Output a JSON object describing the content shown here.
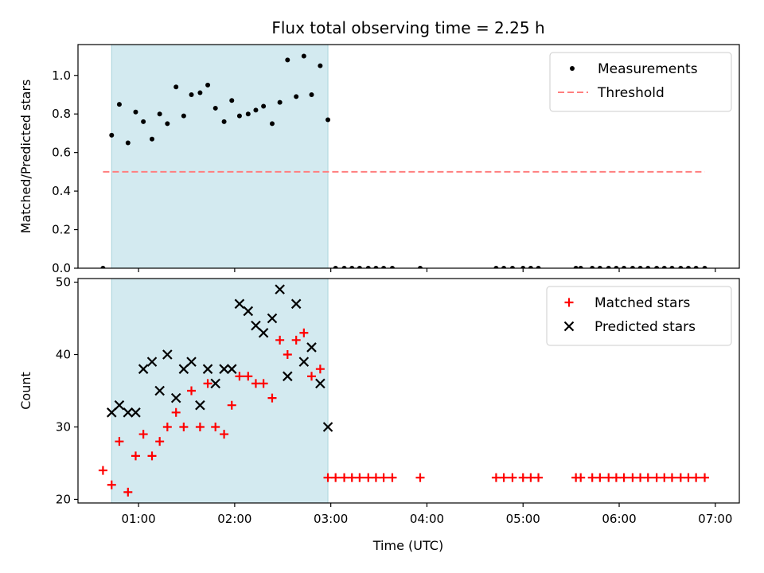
{
  "chart_data": {
    "title": "Flux total observing time = 2.25 h",
    "xlabel": "Time (UTC)",
    "x_ticks": [
      "01:00",
      "02:00",
      "03:00",
      "04:00",
      "05:00",
      "06:00",
      "07:00"
    ],
    "xlim_hours": [
      0.37,
      7.25
    ],
    "shaded_interval_hours": [
      0.72,
      2.97
    ],
    "shade_color": "#d3eaf0",
    "panels": [
      {
        "type": "scatter",
        "ylabel": "Matched/Predicted stars",
        "ylim": [
          0,
          1.16
        ],
        "y_ticks": [
          0.0,
          0.2,
          0.4,
          0.6,
          0.8,
          1.0
        ],
        "legend_position": "top-right",
        "series": [
          {
            "name": "Measurements",
            "marker": "dot",
            "color": "#000000",
            "points": [
              [
                0.63,
                0.0
              ],
              [
                0.72,
                0.69
              ],
              [
                0.8,
                0.85
              ],
              [
                0.89,
                0.65
              ],
              [
                0.97,
                0.81
              ],
              [
                1.05,
                0.76
              ],
              [
                1.14,
                0.67
              ],
              [
                1.22,
                0.8
              ],
              [
                1.3,
                0.75
              ],
              [
                1.39,
                0.94
              ],
              [
                1.47,
                0.79
              ],
              [
                1.55,
                0.9
              ],
              [
                1.64,
                0.91
              ],
              [
                1.72,
                0.95
              ],
              [
                1.8,
                0.83
              ],
              [
                1.89,
                0.76
              ],
              [
                1.97,
                0.87
              ],
              [
                2.05,
                0.79
              ],
              [
                2.14,
                0.8
              ],
              [
                2.22,
                0.82
              ],
              [
                2.3,
                0.84
              ],
              [
                2.39,
                0.75
              ],
              [
                2.47,
                0.86
              ],
              [
                2.55,
                1.08
              ],
              [
                2.64,
                0.89
              ],
              [
                2.72,
                1.1
              ],
              [
                2.8,
                0.9
              ],
              [
                2.89,
                1.05
              ],
              [
                2.97,
                0.77
              ],
              [
                3.05,
                0.0
              ],
              [
                3.14,
                0.0
              ],
              [
                3.22,
                0.0
              ],
              [
                3.3,
                0.0
              ],
              [
                3.39,
                0.0
              ],
              [
                3.47,
                0.0
              ],
              [
                3.55,
                0.0
              ],
              [
                3.64,
                0.0
              ],
              [
                3.93,
                0.0
              ],
              [
                4.72,
                0.0
              ],
              [
                4.8,
                0.0
              ],
              [
                4.89,
                0.0
              ],
              [
                5.0,
                0.0
              ],
              [
                5.08,
                0.0
              ],
              [
                5.16,
                0.0
              ],
              [
                5.55,
                0.0
              ],
              [
                5.6,
                0.0
              ],
              [
                5.72,
                0.0
              ],
              [
                5.8,
                0.0
              ],
              [
                5.89,
                0.0
              ],
              [
                5.97,
                0.0
              ],
              [
                6.05,
                0.0
              ],
              [
                6.14,
                0.0
              ],
              [
                6.22,
                0.0
              ],
              [
                6.3,
                0.0
              ],
              [
                6.39,
                0.0
              ],
              [
                6.47,
                0.0
              ],
              [
                6.55,
                0.0
              ],
              [
                6.64,
                0.0
              ],
              [
                6.72,
                0.0
              ],
              [
                6.8,
                0.0
              ],
              [
                6.89,
                0.0
              ]
            ]
          },
          {
            "name": "Threshold",
            "type": "line",
            "style": "dashed",
            "color": "#ff7f7f",
            "points": [
              [
                0.63,
                0.5
              ],
              [
                6.89,
                0.5
              ]
            ]
          }
        ]
      },
      {
        "type": "scatter",
        "ylabel": "Count",
        "ylim": [
          19.5,
          50.5
        ],
        "y_ticks": [
          20,
          30,
          40,
          50
        ],
        "legend_position": "top-right",
        "series": [
          {
            "name": "Matched stars",
            "marker": "plus",
            "color": "#ff0000",
            "points": [
              [
                0.63,
                24
              ],
              [
                0.72,
                22
              ],
              [
                0.8,
                28
              ],
              [
                0.89,
                21
              ],
              [
                0.97,
                26
              ],
              [
                1.05,
                29
              ],
              [
                1.14,
                26
              ],
              [
                1.22,
                28
              ],
              [
                1.3,
                30
              ],
              [
                1.39,
                32
              ],
              [
                1.47,
                30
              ],
              [
                1.55,
                35
              ],
              [
                1.64,
                30
              ],
              [
                1.72,
                36
              ],
              [
                1.8,
                30
              ],
              [
                1.89,
                29
              ],
              [
                1.97,
                33
              ],
              [
                2.05,
                37
              ],
              [
                2.14,
                37
              ],
              [
                2.22,
                36
              ],
              [
                2.3,
                36
              ],
              [
                2.39,
                34
              ],
              [
                2.47,
                42
              ],
              [
                2.55,
                40
              ],
              [
                2.64,
                42
              ],
              [
                2.72,
                43
              ],
              [
                2.8,
                37
              ],
              [
                2.89,
                38
              ],
              [
                2.97,
                23
              ],
              [
                3.05,
                23
              ],
              [
                3.14,
                23
              ],
              [
                3.22,
                23
              ],
              [
                3.3,
                23
              ],
              [
                3.39,
                23
              ],
              [
                3.47,
                23
              ],
              [
                3.55,
                23
              ],
              [
                3.64,
                23
              ],
              [
                3.93,
                23
              ],
              [
                4.72,
                23
              ],
              [
                4.8,
                23
              ],
              [
                4.89,
                23
              ],
              [
                5.0,
                23
              ],
              [
                5.08,
                23
              ],
              [
                5.16,
                23
              ],
              [
                5.55,
                23
              ],
              [
                5.6,
                23
              ],
              [
                5.72,
                23
              ],
              [
                5.8,
                23
              ],
              [
                5.89,
                23
              ],
              [
                5.97,
                23
              ],
              [
                6.05,
                23
              ],
              [
                6.14,
                23
              ],
              [
                6.22,
                23
              ],
              [
                6.3,
                23
              ],
              [
                6.39,
                23
              ],
              [
                6.47,
                23
              ],
              [
                6.55,
                23
              ],
              [
                6.64,
                23
              ],
              [
                6.72,
                23
              ],
              [
                6.8,
                23
              ],
              [
                6.89,
                23
              ]
            ]
          },
          {
            "name": "Predicted stars",
            "marker": "x",
            "color": "#000000",
            "points": [
              [
                0.72,
                32
              ],
              [
                0.8,
                33
              ],
              [
                0.89,
                32
              ],
              [
                0.97,
                32
              ],
              [
                1.05,
                38
              ],
              [
                1.14,
                39
              ],
              [
                1.22,
                35
              ],
              [
                1.3,
                40
              ],
              [
                1.39,
                34
              ],
              [
                1.47,
                38
              ],
              [
                1.55,
                39
              ],
              [
                1.64,
                33
              ],
              [
                1.72,
                38
              ],
              [
                1.8,
                36
              ],
              [
                1.89,
                38
              ],
              [
                1.97,
                38
              ],
              [
                2.05,
                47
              ],
              [
                2.14,
                46
              ],
              [
                2.22,
                44
              ],
              [
                2.3,
                43
              ],
              [
                2.39,
                45
              ],
              [
                2.47,
                49
              ],
              [
                2.55,
                37
              ],
              [
                2.64,
                47
              ],
              [
                2.72,
                39
              ],
              [
                2.8,
                41
              ],
              [
                2.89,
                36
              ],
              [
                2.97,
                30
              ]
            ]
          }
        ]
      }
    ]
  }
}
